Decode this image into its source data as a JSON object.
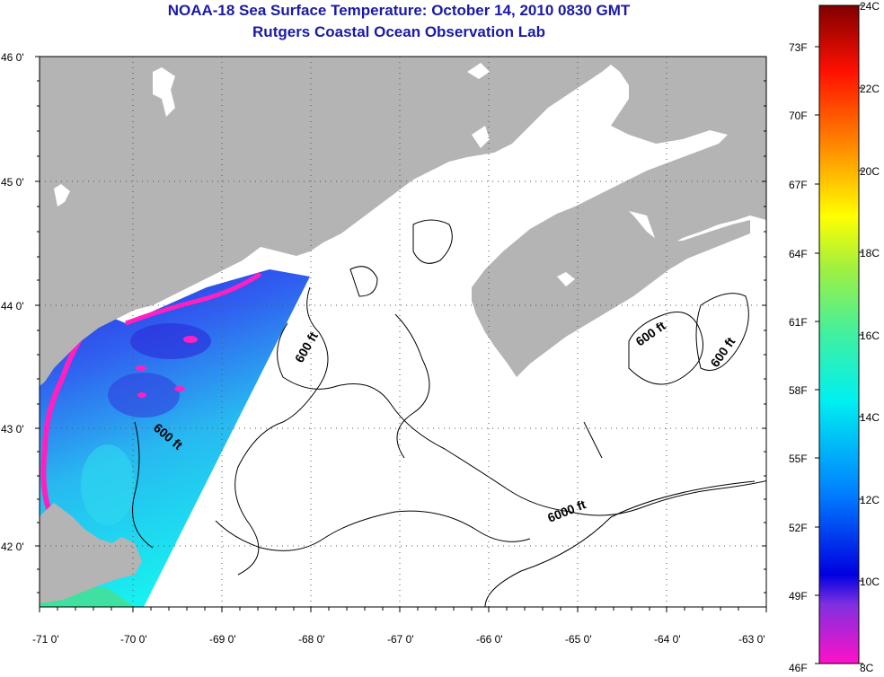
{
  "title": {
    "line1": "NOAA-18 Sea Surface Temperature:  October 14, 2010 0830 GMT",
    "line2": "Rutgers Coastal Ocean Observation Lab"
  },
  "latitudes": [
    "46 0'",
    "45 0'",
    "44 0'",
    "43 0'",
    "42 0'"
  ],
  "longitudes": [
    "-71 0'",
    "-70 0'",
    "-69 0'",
    "-68 0'",
    "-67 0'",
    "-66 0'",
    "-65 0'",
    "-64 0'",
    "-63 0'"
  ],
  "contour_labels": [
    "600 ft",
    "600 ft",
    "600 ft",
    "600 ft",
    "6000 ft"
  ],
  "colorbar": {
    "fahrenheit": [
      "73F",
      "70F",
      "67F",
      "64F",
      "61F",
      "58F",
      "55F",
      "52F",
      "49F",
      "46F"
    ],
    "celsius": [
      "24C",
      "22C",
      "20C",
      "18C",
      "16C",
      "14C",
      "12C",
      "10C",
      "8C"
    ]
  },
  "colors": {
    "land": "#b4b4b4",
    "ocean": "#ffffff",
    "title": "#1a1aa8"
  }
}
